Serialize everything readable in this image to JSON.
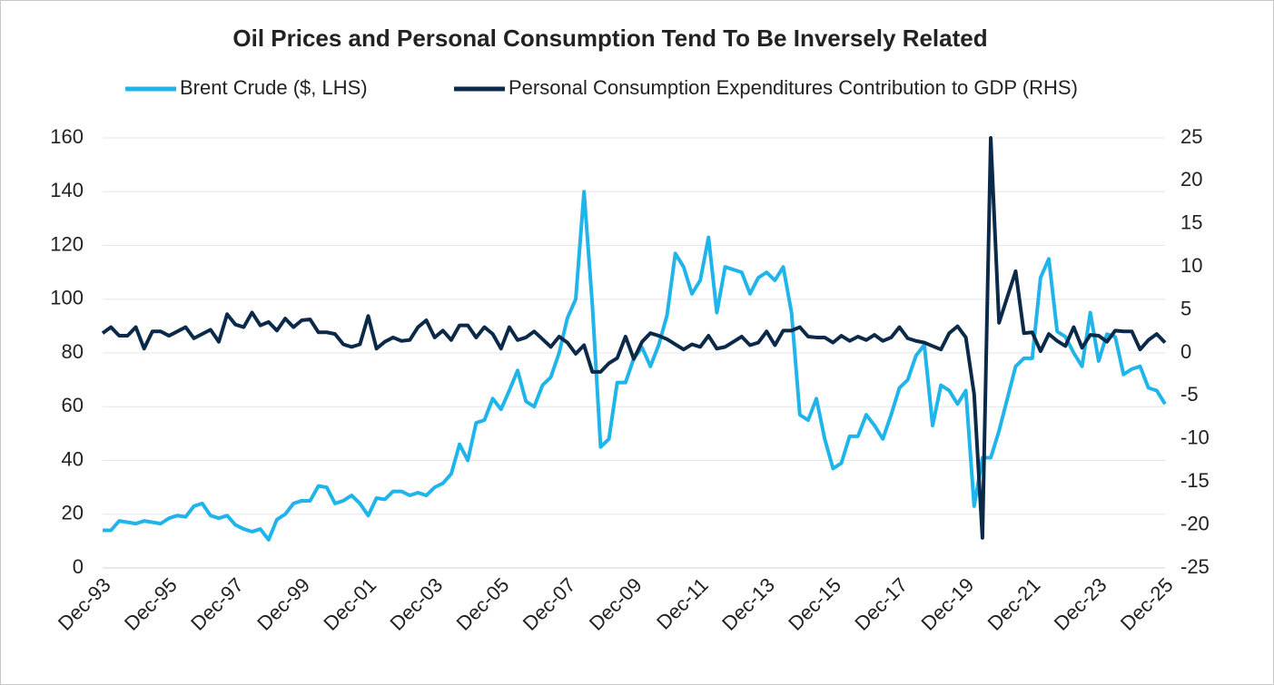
{
  "chart_data": {
    "type": "line",
    "title": "Oil Prices and Personal Consumption Tend To Be Inversely Related",
    "categories": [
      "Dec-93",
      null,
      null,
      null,
      null,
      null,
      null,
      null,
      "Dec-95",
      null,
      null,
      null,
      null,
      null,
      null,
      null,
      "Dec-97",
      null,
      null,
      null,
      null,
      null,
      null,
      null,
      "Dec-99",
      null,
      null,
      null,
      null,
      null,
      null,
      null,
      "Dec-01",
      null,
      null,
      null,
      null,
      null,
      null,
      null,
      "Dec-03",
      null,
      null,
      null,
      null,
      null,
      null,
      null,
      "Dec-05",
      null,
      null,
      null,
      null,
      null,
      null,
      null,
      "Dec-07",
      null,
      null,
      null,
      null,
      null,
      null,
      null,
      "Dec-09",
      null,
      null,
      null,
      null,
      null,
      null,
      null,
      "Dec-11",
      null,
      null,
      null,
      null,
      null,
      null,
      null,
      "Dec-13",
      null,
      null,
      null,
      null,
      null,
      null,
      null,
      "Dec-15",
      null,
      null,
      null,
      null,
      null,
      null,
      null,
      "Dec-17",
      null,
      null,
      null,
      null,
      null,
      null,
      null,
      "Dec-19",
      null,
      null,
      null,
      null,
      null,
      null,
      null,
      "Dec-21",
      null,
      null,
      null,
      null,
      null,
      null,
      null,
      "Dec-23",
      null,
      null,
      null,
      null,
      null,
      null,
      null,
      "Dec-25"
    ],
    "series": [
      {
        "name": "Brent Crude ($, LHS)",
        "color": "#1fb4ea",
        "axis": "y",
        "values": [
          14,
          14,
          17.5,
          17,
          16.5,
          17.5,
          17,
          16.5,
          18.5,
          19.5,
          19,
          23,
          24,
          19.5,
          18.5,
          19.5,
          16,
          14.5,
          13.5,
          14.5,
          10.5,
          18,
          20,
          24,
          25,
          25,
          30.5,
          30,
          24,
          25,
          27,
          24,
          19.5,
          26,
          25.5,
          28.5,
          28.5,
          27,
          28,
          27,
          30,
          31.5,
          35,
          46,
          40,
          54,
          55,
          63,
          59,
          66,
          73.5,
          62,
          60,
          68,
          71,
          80,
          93,
          100,
          140,
          98,
          45,
          48,
          69,
          69,
          78,
          82,
          75,
          83,
          94,
          117,
          112,
          102,
          107,
          123,
          95,
          112,
          111,
          110,
          102,
          108,
          110,
          107,
          112,
          95,
          57,
          55,
          63,
          48,
          37,
          39,
          49,
          49,
          57,
          53,
          48,
          57,
          67,
          70,
          79,
          83,
          53,
          68,
          66,
          61,
          66,
          23,
          41,
          41,
          51,
          63,
          75,
          78,
          78,
          108,
          115,
          88,
          86,
          80,
          75,
          95,
          77,
          87,
          86,
          72,
          74,
          75,
          67,
          66,
          61
        ]
      },
      {
        "name": "Personal Consumption Expenditures Contribution to GDP (RHS)",
        "color": "#0b2a4a",
        "axis": "y2",
        "values": [
          2.3,
          3.0,
          2.0,
          2.0,
          3.0,
          0.5,
          2.5,
          2.5,
          2.0,
          2.5,
          3.0,
          1.7,
          2.2,
          2.7,
          1.3,
          4.5,
          3.3,
          3.0,
          4.7,
          3.2,
          3.6,
          2.6,
          4.0,
          3.0,
          3.8,
          3.9,
          2.4,
          2.4,
          2.2,
          1.0,
          0.7,
          1.0,
          4.3,
          0.5,
          1.3,
          1.8,
          1.4,
          1.5,
          3.0,
          3.8,
          1.8,
          2.6,
          1.5,
          3.2,
          3.2,
          1.8,
          3.0,
          2.2,
          0.5,
          3.0,
          1.5,
          1.8,
          2.5,
          1.6,
          0.7,
          1.9,
          1.2,
          -0.1,
          0.9,
          -2.2,
          -2.2,
          -1.2,
          -0.6,
          1.9,
          -0.7,
          1.3,
          2.3,
          2.0,
          1.6,
          1.0,
          0.4,
          1.0,
          0.7,
          2.0,
          0.5,
          0.7,
          1.3,
          1.9,
          0.9,
          1.2,
          2.5,
          0.9,
          2.6,
          2.6,
          3.0,
          1.9,
          1.8,
          1.8,
          1.2,
          2.0,
          1.4,
          1.9,
          1.5,
          2.1,
          1.4,
          1.8,
          3.0,
          1.7,
          1.4,
          1.2,
          0.8,
          0.4,
          2.3,
          3.1,
          1.8,
          -4.8,
          -21.5,
          25,
          3.5,
          6.5,
          9.5,
          2.3,
          2.4,
          0.2,
          2.2,
          1.4,
          0.8,
          3.0,
          0.6,
          2.1,
          2.0,
          1.3,
          2.6,
          2.5,
          2.5,
          0.4,
          1.5,
          2.2,
          1.2
        ]
      }
    ],
    "ylim": [
      0,
      160
    ],
    "yticks": [
      0,
      20,
      40,
      60,
      80,
      100,
      120,
      140,
      160
    ],
    "y2lim": [
      -25,
      25
    ],
    "y2ticks": [
      -25,
      -20,
      -15,
      -10,
      -5,
      0,
      5,
      10,
      15,
      20,
      25
    ],
    "grid": true,
    "legend": "top"
  }
}
